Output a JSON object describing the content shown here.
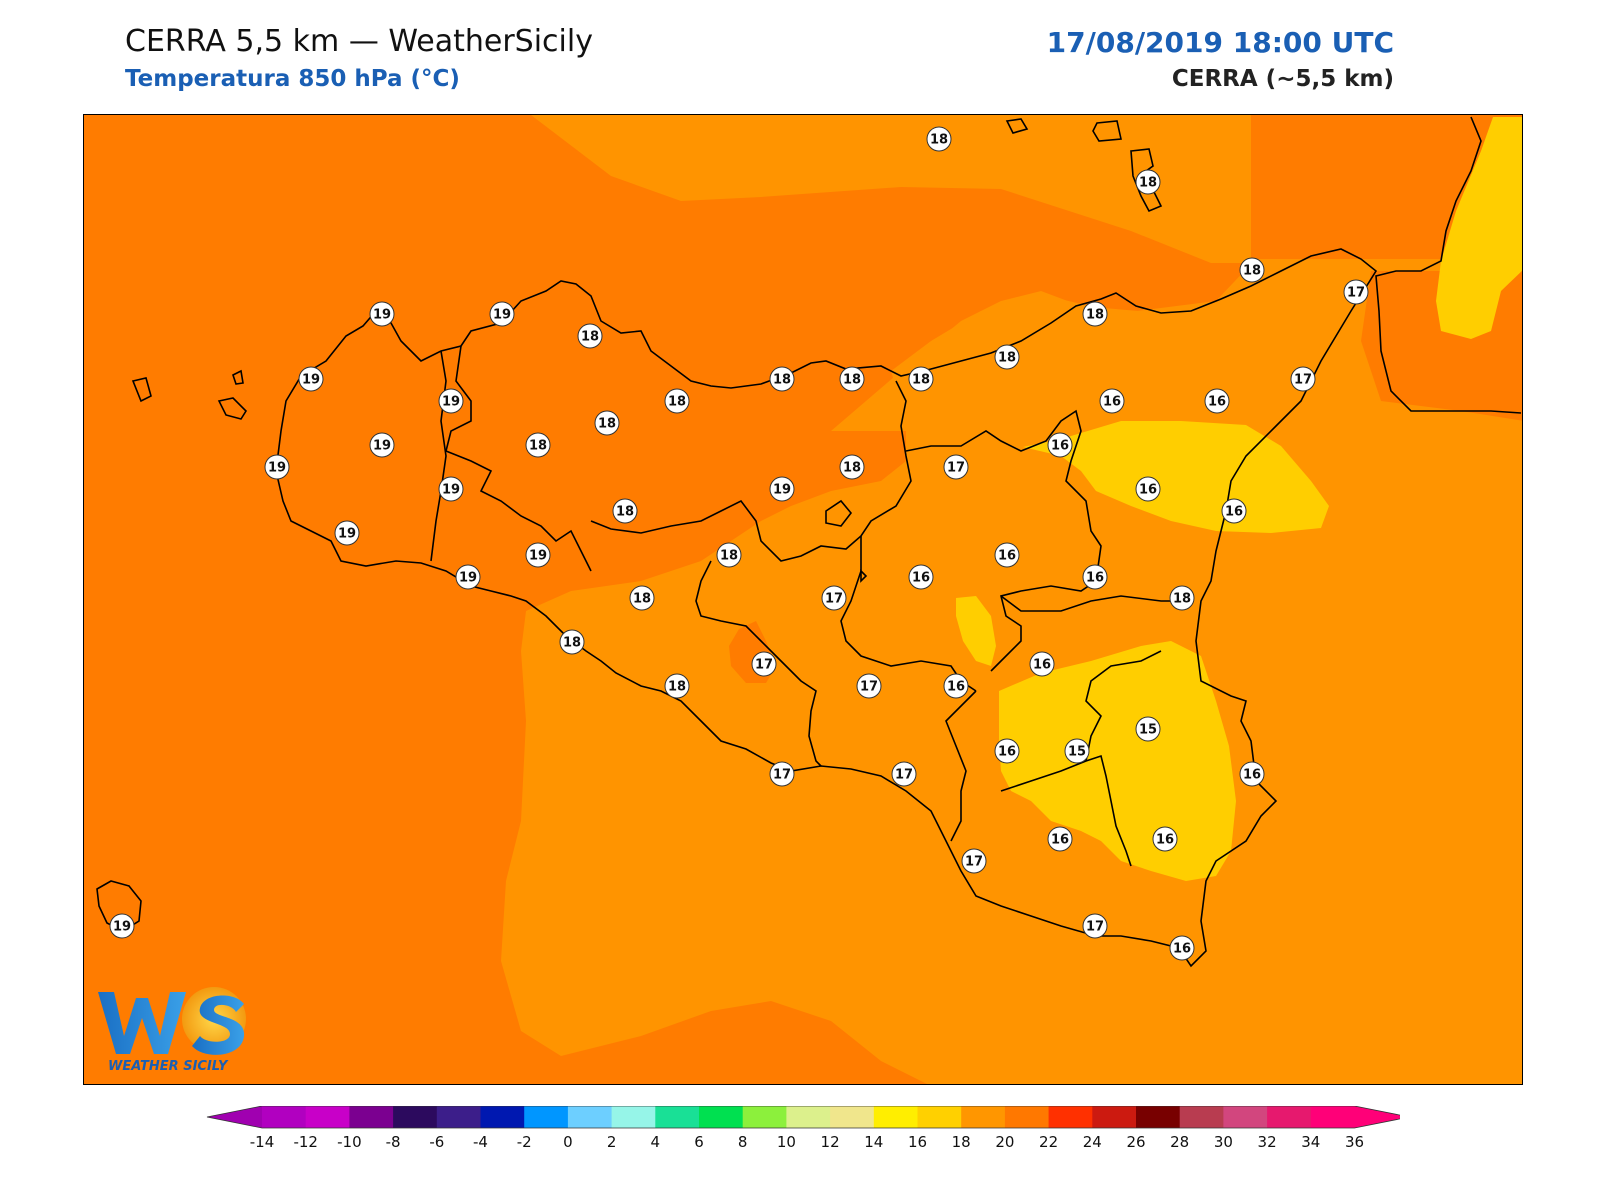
{
  "header": {
    "title": "CERRA 5,5 km — WeatherSicily",
    "subtitle": "Temperatura 850 hPa (°C)",
    "datetime": "17/08/2019 18:00 UTC",
    "model": "CERRA (~5,5 km)"
  },
  "logo": {
    "letters": "WS",
    "name": "WEATHER SICILY"
  },
  "colors": {
    "field_20_22": "#ff7c00",
    "field_18_20": "#ff9400",
    "field_16_18": "#ffce00",
    "coastline": "#000000"
  },
  "colorbar": {
    "ticks": [
      "-14",
      "-12",
      "-10",
      "-8",
      "-6",
      "-4",
      "-2",
      "0",
      "2",
      "4",
      "6",
      "8",
      "10",
      "12",
      "14",
      "16",
      "18",
      "20",
      "22",
      "24",
      "26",
      "28",
      "30",
      "32",
      "34",
      "36"
    ],
    "colors": [
      "#b100c0",
      "#c800c8",
      "#7b0090",
      "#2c0a5e",
      "#3c1e8a",
      "#0018b0",
      "#0096ff",
      "#6dcfff",
      "#96f5e8",
      "#19e096",
      "#00e050",
      "#8cf03c",
      "#dcf08c",
      "#f0e68c",
      "#ffee00",
      "#ffd000",
      "#ff9600",
      "#ff7800",
      "#ff3000",
      "#cc1a10",
      "#780000",
      "#b83c50",
      "#d2467e",
      "#e6196e",
      "#ff0078"
    ],
    "under_color": "#a000b0",
    "over_color": "#ff0078"
  },
  "stations": [
    {
      "v": "18"
    },
    {
      "v": "18"
    },
    {
      "v": "18"
    },
    {
      "v": "17"
    },
    {
      "v": "19"
    },
    {
      "v": "19"
    },
    {
      "v": "18"
    },
    {
      "v": "18"
    },
    {
      "v": "18"
    },
    {
      "v": "19"
    },
    {
      "v": "19"
    },
    {
      "v": "18"
    },
    {
      "v": "18"
    },
    {
      "v": "18"
    },
    {
      "v": "18"
    },
    {
      "v": "16"
    },
    {
      "v": "16"
    },
    {
      "v": "17"
    },
    {
      "v": "19"
    },
    {
      "v": "19"
    },
    {
      "v": "18"
    },
    {
      "v": "18"
    },
    {
      "v": "17"
    },
    {
      "v": "16"
    },
    {
      "v": "19"
    },
    {
      "v": "18"
    },
    {
      "v": "19"
    },
    {
      "v": "18"
    },
    {
      "v": "16"
    },
    {
      "v": "19"
    },
    {
      "v": "19"
    },
    {
      "v": "18"
    },
    {
      "v": "16"
    },
    {
      "v": "16"
    },
    {
      "v": "16"
    },
    {
      "v": "19"
    },
    {
      "v": "18"
    },
    {
      "v": "17"
    },
    {
      "v": "16"
    },
    {
      "v": "18"
    },
    {
      "v": "18"
    },
    {
      "v": "17"
    },
    {
      "v": "17"
    },
    {
      "v": "16"
    },
    {
      "v": "18"
    },
    {
      "v": "16"
    },
    {
      "v": "15"
    },
    {
      "v": "15"
    },
    {
      "v": "17"
    },
    {
      "v": "17"
    },
    {
      "v": "16"
    },
    {
      "v": "16"
    },
    {
      "v": "17"
    },
    {
      "v": "16"
    },
    {
      "v": "16"
    },
    {
      "v": "17"
    },
    {
      "v": "16"
    },
    {
      "v": "19"
    }
  ]
}
